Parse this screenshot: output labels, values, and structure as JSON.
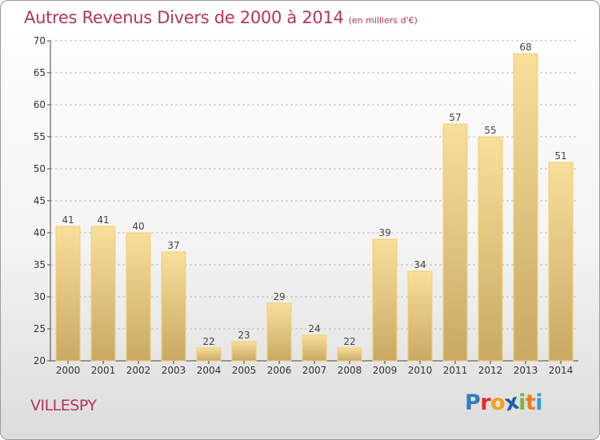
{
  "chart_data": {
    "type": "bar",
    "title": "Autres Revenus Divers de 2000 à 2014",
    "subtitle": "(en milliers d'€)",
    "categories": [
      "2000",
      "2001",
      "2002",
      "2003",
      "2004",
      "2005",
      "2006",
      "2007",
      "2008",
      "2009",
      "2010",
      "2011",
      "2012",
      "2013",
      "2014"
    ],
    "values": [
      41,
      41,
      40,
      37,
      22,
      23,
      29,
      24,
      22,
      39,
      34,
      57,
      55,
      68,
      51
    ],
    "ylim": [
      20,
      70
    ],
    "yticks": [
      20,
      25,
      30,
      35,
      40,
      45,
      50,
      55,
      60,
      65,
      70
    ],
    "grid": true,
    "colors": {
      "bar_light": "#f7df9a",
      "bar_dark": "#c9a964",
      "bar_edge": "#f2cf6a",
      "grid": "#bbbbbb",
      "axis": "#444444"
    }
  },
  "footer": {
    "commune": "VILLESPY"
  },
  "logo": {
    "letters": [
      {
        "ch": "P",
        "color": "#2e7ec2"
      },
      {
        "ch": "r",
        "color": "#e8262b"
      },
      {
        "ch": "o",
        "color": "#f2a21b"
      },
      {
        "ch": "x",
        "color": "#1e5ea8"
      },
      {
        "ch": "i",
        "color": "#7cb53a"
      },
      {
        "ch": "t",
        "color": "#e97f1c"
      },
      {
        "ch": "i",
        "color": "#2e9ed6"
      }
    ]
  }
}
